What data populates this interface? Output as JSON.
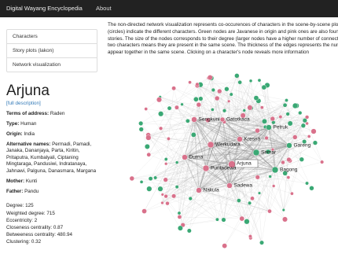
{
  "navbar": {
    "brand": "Digital Wayang Encyclopedia",
    "links": [
      "About"
    ]
  },
  "sidebar": {
    "items": [
      "Characters",
      "Story plots (lakon)",
      "Network visualization"
    ]
  },
  "character": {
    "name": "Arjuna",
    "link": "[full description]",
    "fields": [
      {
        "label": "Terms of address:",
        "value": "Raden"
      },
      {
        "label": "Type:",
        "value": "Human"
      },
      {
        "label": "Origin:",
        "value": "India"
      },
      {
        "label": "Alternative names:",
        "value": "Permadi, Pamadi, Janaka, Dananjaya, Parta, Kiritin, Pritaputra, Kumbalyali, Ciptaning Mingtaraga, Pandusiwi, Indratanaya, Jahnawi, Palguna, Danasmara, Margana"
      },
      {
        "label": "Mother:",
        "value": "Kunti"
      },
      {
        "label": "Father:",
        "value": "Pandu"
      }
    ],
    "stats": [
      "Degree: 125",
      "Weighted degree: 715",
      "Eccentricity: 2",
      "Closeness centrality: 0.87",
      "Betweeness centrality: 480.94",
      "Clustering: 0.32"
    ]
  },
  "description": {
    "lines": [
      "The non-directed network visualization represents co-occurences of characters in the scene-by-scene plot de",
      "(circles) indicate the different characters. Green nodes are Javanese in origin and pink ones are also found in",
      "stories. The size of the nodes corresponds to their degree (larger nodes have a higher number of connection",
      "two characters means they are present in the same scene. The thickness of the edges represents the number",
      "appear together in the same scene. Clicking on a character's node reveals more information"
    ]
  },
  "network": {
    "nodes": [
      "Sengkuni",
      "Gatotkaca",
      "Petruk",
      "Kresna",
      "Werkudara",
      "Semar",
      "Gareng",
      "Durna",
      "Arjuna",
      "Puntadewa",
      "Bagong",
      "Sadewa",
      "Nakula"
    ]
  }
}
